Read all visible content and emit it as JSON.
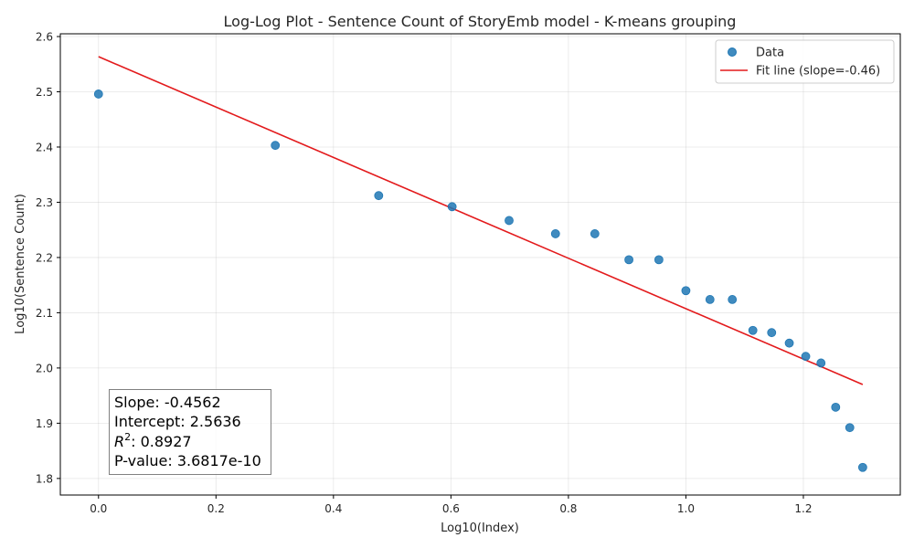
{
  "chart_data": {
    "type": "scatter",
    "title": "Log-Log Plot - Sentence Count of StoryEmb model - K-means grouping",
    "xlabel": "Log10(Index)",
    "ylabel": "Log10(Sentence Count)",
    "xlim": [
      -0.065,
      1.365
    ],
    "ylim": [
      1.77,
      2.605
    ],
    "xticks": [
      0.0,
      0.2,
      0.4,
      0.6,
      0.8,
      1.0,
      1.2
    ],
    "xtick_labels": [
      "0.0",
      "0.2",
      "0.4",
      "0.6",
      "0.8",
      "1.0",
      "1.2"
    ],
    "yticks": [
      1.8,
      1.9,
      2.0,
      2.1,
      2.2,
      2.3,
      2.4,
      2.5,
      2.6
    ],
    "ytick_labels": [
      "1.8",
      "1.9",
      "2.0",
      "2.1",
      "2.2",
      "2.3",
      "2.4",
      "2.5",
      "2.6"
    ],
    "grid": true,
    "legend_position": "top-right",
    "series": [
      {
        "name": "Data",
        "type": "scatter",
        "color": "#1f77b4",
        "x": [
          0.0,
          0.301,
          0.477,
          0.602,
          0.699,
          0.778,
          0.845,
          0.903,
          0.954,
          1.0,
          1.041,
          1.079,
          1.114,
          1.146,
          1.176,
          1.204,
          1.23,
          1.255,
          1.279,
          1.301
        ],
        "y": [
          2.496,
          2.403,
          2.312,
          2.292,
          2.267,
          2.243,
          2.243,
          2.196,
          2.196,
          2.14,
          2.124,
          2.124,
          2.068,
          2.064,
          2.045,
          2.021,
          2.009,
          1.929,
          1.892,
          1.82
        ]
      },
      {
        "name": "Fit line (slope=-0.46)",
        "type": "line",
        "color": "#e31a1c",
        "x": [
          0.0,
          1.301
        ],
        "y": [
          2.5636,
          1.9701
        ]
      }
    ],
    "annotation": {
      "slope_line": "Slope: -0.4562",
      "intercept_line": "Intercept: 2.5636",
      "r2_prefix": "R",
      "r2_sup": "2",
      "r2_value": ": 0.8927",
      "pvalue_line": "P-value: 3.6817e-10"
    }
  }
}
